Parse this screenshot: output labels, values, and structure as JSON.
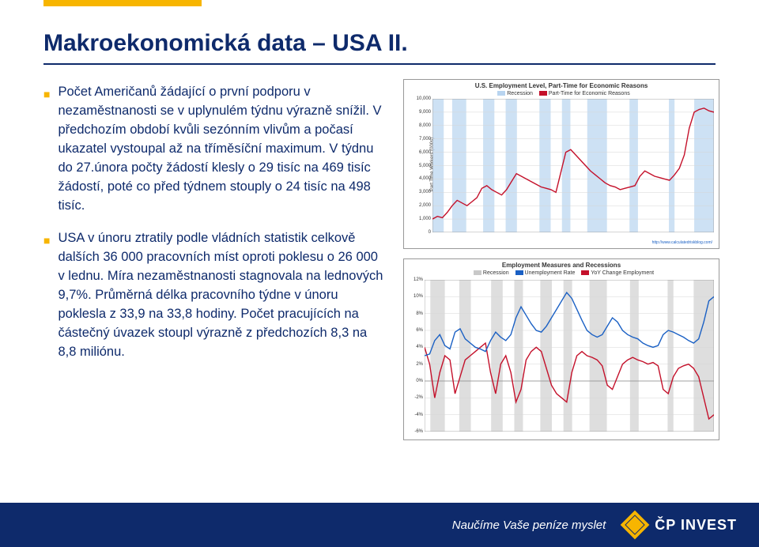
{
  "accent_color": "#f7b500",
  "brand_blue": "#0e2a6b",
  "title": "Makroekonomická data – USA II.",
  "bullets": [
    "Počet Američanů žádající o první podporu v nezaměstnanosti se v uplynulém týdnu výrazně snížil. V předchozím období kvůli sezónním vlivům a počasí ukazatel vystoupal až na tříměsíční maximum. V týdnu do 27.února počty žádostí klesly o 29 tisíc na 469 tisíc žádostí, poté co před týdnem stouply o 24 tisíc na 498 tisíc.",
    "USA v únoru ztratily podle vládních statistik celkově dalších 36 000 pracovních míst oproti poklesu o 26 000 v lednu. Míra nezaměstnanosti stagnovala na lednových 9,7%. Průměrná délka pracovního týdne v únoru poklesla z 33,9 na 33,8 hodiny. Počet pracujících na částečný úvazek stoupl výrazně z předchozích 8,3 na 8,8 miliónu."
  ],
  "chart1": {
    "title": "U.S. Employment Level, Part-Time for Economic Reasons",
    "legend": [
      {
        "label": "Recession",
        "color": "#b8d4f0"
      },
      {
        "label": "Part-Time for Economic Reasons",
        "color": "#c4102a"
      }
    ],
    "y_label": "Part Time Workers (000s)",
    "y_ticks": [
      "0",
      "1,000",
      "2,000",
      "3,000",
      "4,000",
      "5,000",
      "6,000",
      "7,000",
      "8,000",
      "9,000",
      "10,000"
    ],
    "ylim": [
      0,
      10000
    ],
    "recession_bands": [
      [
        0.0,
        0.04
      ],
      [
        0.07,
        0.12
      ],
      [
        0.18,
        0.22
      ],
      [
        0.26,
        0.3
      ],
      [
        0.38,
        0.42
      ],
      [
        0.46,
        0.49
      ],
      [
        0.55,
        0.62
      ],
      [
        0.7,
        0.73
      ],
      [
        0.84,
        0.86
      ],
      [
        0.93,
        1.0
      ]
    ],
    "series": [
      1000,
      1200,
      1100,
      1500,
      2000,
      2400,
      2200,
      2000,
      2300,
      2600,
      3300,
      3500,
      3200,
      3000,
      2800,
      3200,
      3800,
      4400,
      4200,
      4000,
      3800,
      3600,
      3400,
      3300,
      3200,
      3000,
      4500,
      6000,
      6200,
      5800,
      5400,
      5000,
      4600,
      4300,
      4000,
      3700,
      3500,
      3400,
      3200,
      3300,
      3400,
      3500,
      4200,
      4600,
      4400,
      4200,
      4100,
      4000,
      3900,
      4300,
      4800,
      5800,
      7800,
      9000,
      9200,
      9300,
      9100,
      9000
    ],
    "line_color": "#c4102a",
    "grid_color": "#d6d6d6",
    "source": "http://www.calculatedriskblog.com/"
  },
  "chart2": {
    "title": "Employment Measures and Recessions",
    "legend": [
      {
        "label": "Recession",
        "color": "#c8c8c8"
      },
      {
        "label": "Unemployment Rate",
        "color": "#1a60c4"
      },
      {
        "label": "YoY Change Employment",
        "color": "#c4102a"
      }
    ],
    "y_ticks": [
      "-6%",
      "-4%",
      "-2%",
      "0%",
      "2%",
      "4%",
      "6%",
      "8%",
      "10%",
      "12%"
    ],
    "ylim": [
      -6,
      12
    ],
    "recession_bands": [
      [
        0.02,
        0.07
      ],
      [
        0.12,
        0.16
      ],
      [
        0.23,
        0.27
      ],
      [
        0.31,
        0.34
      ],
      [
        0.4,
        0.44
      ],
      [
        0.48,
        0.51
      ],
      [
        0.57,
        0.63
      ],
      [
        0.71,
        0.74
      ],
      [
        0.84,
        0.86
      ],
      [
        0.93,
        1.0
      ]
    ],
    "unemployment": [
      3.0,
      3.2,
      4.8,
      5.5,
      4.2,
      3.8,
      5.8,
      6.2,
      5.0,
      4.5,
      4.0,
      3.8,
      3.5,
      4.8,
      5.8,
      5.2,
      4.8,
      5.5,
      7.5,
      8.8,
      7.8,
      6.8,
      6.0,
      5.8,
      6.5,
      7.5,
      8.5,
      9.5,
      10.5,
      9.8,
      8.5,
      7.2,
      6.0,
      5.5,
      5.2,
      5.5,
      6.5,
      7.5,
      7.0,
      6.0,
      5.5,
      5.2,
      5.0,
      4.5,
      4.2,
      4.0,
      4.2,
      5.5,
      6.0,
      5.8,
      5.5,
      5.2,
      4.8,
      4.5,
      5.0,
      7.0,
      9.5,
      10.0
    ],
    "yoy_change": [
      4.0,
      2.0,
      -2.0,
      1.0,
      3.0,
      2.5,
      -1.5,
      0.5,
      2.5,
      3.0,
      3.5,
      4.0,
      4.5,
      1.0,
      -1.5,
      2.0,
      3.0,
      1.0,
      -2.5,
      -1.0,
      2.5,
      3.5,
      4.0,
      3.5,
      1.5,
      -0.5,
      -1.5,
      -2.0,
      -2.5,
      1.0,
      3.0,
      3.5,
      3.0,
      2.8,
      2.5,
      1.8,
      -0.5,
      -1.0,
      0.5,
      2.0,
      2.5,
      2.8,
      2.5,
      2.3,
      2.0,
      2.2,
      1.8,
      -1.0,
      -1.5,
      0.5,
      1.5,
      1.8,
      2.0,
      1.5,
      0.5,
      -2.0,
      -4.5,
      -4.0
    ],
    "unemployment_color": "#1a60c4",
    "yoy_color": "#c4102a",
    "grid_color": "#d6d6d6",
    "zero_line_color": "#888888"
  },
  "footer": {
    "tagline": "Naučíme Vaše peníze myslet",
    "logo_text": "ČP INVEST"
  }
}
